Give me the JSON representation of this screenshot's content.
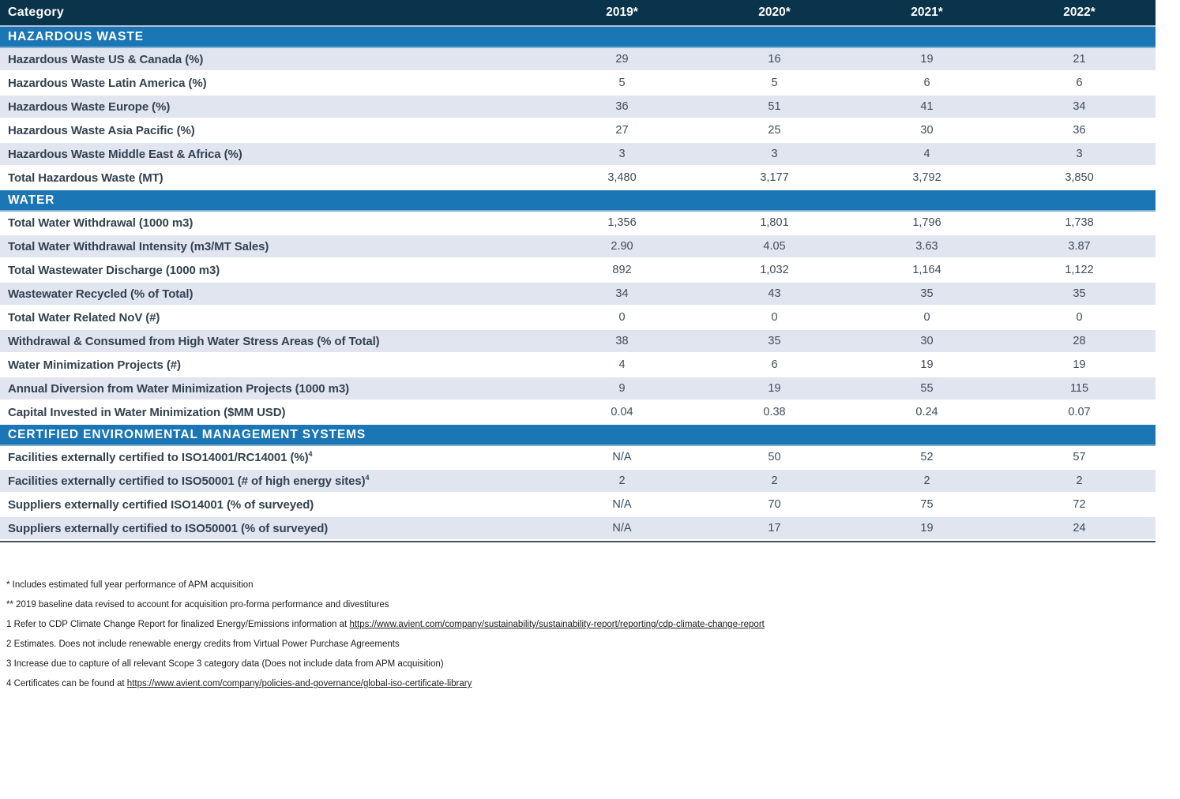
{
  "colors": {
    "header_navy": "#0a334c",
    "section_blue": "#1a76b4",
    "shaded_row": "#e1e5f0",
    "label_text": "#33424f",
    "table_end_line": "#44525f"
  },
  "table": {
    "header": {
      "category": "Category",
      "years": [
        "2019*",
        "2020*",
        "2021*",
        "2022*"
      ]
    },
    "sections": [
      {
        "title": "HAZARDOUS WASTE",
        "rows": [
          {
            "label": "Hazardous Waste US & Canada (%)",
            "values": [
              "29",
              "16",
              "19",
              "21"
            ],
            "shade": true
          },
          {
            "label": "Hazardous Waste Latin America (%)",
            "values": [
              "5",
              "5",
              "6",
              "6"
            ],
            "shade": false
          },
          {
            "label": "Hazardous Waste Europe (%)",
            "values": [
              "36",
              "51",
              "41",
              "34"
            ],
            "shade": true
          },
          {
            "label": "Hazardous Waste Asia Pacific (%)",
            "values": [
              "27",
              "25",
              "30",
              "36"
            ],
            "shade": false
          },
          {
            "label": "Hazardous Waste Middle East & Africa (%)",
            "values": [
              "3",
              "3",
              "4",
              "3"
            ],
            "shade": true
          },
          {
            "label": "Total Hazardous Waste (MT)",
            "values": [
              "3,480",
              "3,177",
              "3,792",
              "3,850"
            ],
            "shade": false
          }
        ]
      },
      {
        "title": "WATER",
        "rows": [
          {
            "label": "Total Water Withdrawal (1000 m3)",
            "values": [
              "1,356",
              "1,801",
              "1,796",
              "1,738"
            ],
            "shade": false
          },
          {
            "label": "Total Water Withdrawal Intensity (m3/MT Sales)",
            "values": [
              "2.90",
              "4.05",
              "3.63",
              "3.87"
            ],
            "shade": true
          },
          {
            "label": "Total Wastewater Discharge (1000 m3)",
            "values": [
              "892",
              "1,032",
              "1,164",
              "1,122"
            ],
            "shade": false
          },
          {
            "label": "Wastewater Recycled (% of Total)",
            "values": [
              "34",
              "43",
              "35",
              "35"
            ],
            "shade": true
          },
          {
            "label": "Total Water Related NoV (#)",
            "values": [
              "0",
              "0",
              "0",
              "0"
            ],
            "shade": false
          },
          {
            "label": "Withdrawal & Consumed from High Water Stress Areas (% of Total)",
            "values": [
              "38",
              "35",
              "30",
              "28"
            ],
            "shade": true
          },
          {
            "label": "Water Minimization Projects (#)",
            "values": [
              "4",
              "6",
              "19",
              "19"
            ],
            "shade": false
          },
          {
            "label": "Annual Diversion from Water Minimization Projects (1000 m3)",
            "values": [
              "9",
              "19",
              "55",
              "115"
            ],
            "shade": true
          },
          {
            "label": "Capital Invested in Water Minimization ($MM USD)",
            "values": [
              "0.04",
              "0.38",
              "0.24",
              "0.07"
            ],
            "shade": false
          }
        ]
      },
      {
        "title": "CERTIFIED ENVIRONMENTAL MANAGEMENT SYSTEMS",
        "rows": [
          {
            "label": "Facilities externally certified to ISO14001/RC14001 (%)",
            "sup": "4",
            "values": [
              "N/A",
              "50",
              "52",
              "57"
            ],
            "shade": false
          },
          {
            "label": "Facilities externally certified to ISO50001 (# of high energy sites)",
            "sup": "4",
            "values": [
              "2",
              "2",
              "2",
              "2"
            ],
            "shade": true
          },
          {
            "label": "Suppliers externally certified ISO14001 (% of surveyed)",
            "values": [
              "N/A",
              "70",
              "75",
              "72"
            ],
            "shade": false
          },
          {
            "label": "Suppliers externally certified to ISO50001 (% of surveyed)",
            "values": [
              "N/A",
              "17",
              "19",
              "24"
            ],
            "shade": true
          }
        ]
      }
    ]
  },
  "footnotes": [
    {
      "text": "* Includes estimated full year performance of APM acquisition"
    },
    {
      "text": "** 2019 baseline data revised to account for acquisition pro-forma performance and divestitures"
    },
    {
      "text": "1 Refer to CDP Climate Change Report for finalized Energy/Emissions information at ",
      "link": "https://www.avient.com/company/sustainability/sustainability-report/reporting/cdp-climate-change-report"
    },
    {
      "text": "2 Estimates. Does not include renewable energy credits from Virtual Power Purchase Agreements"
    },
    {
      "text": "3 Increase due to capture of all relevant Scope 3 category data (Does not include data from APM acquisition)"
    },
    {
      "text": "4 Certificates can be found at ",
      "link": "https://www.avient.com/company/policies-and-governance/global-iso-certificate-library"
    }
  ]
}
